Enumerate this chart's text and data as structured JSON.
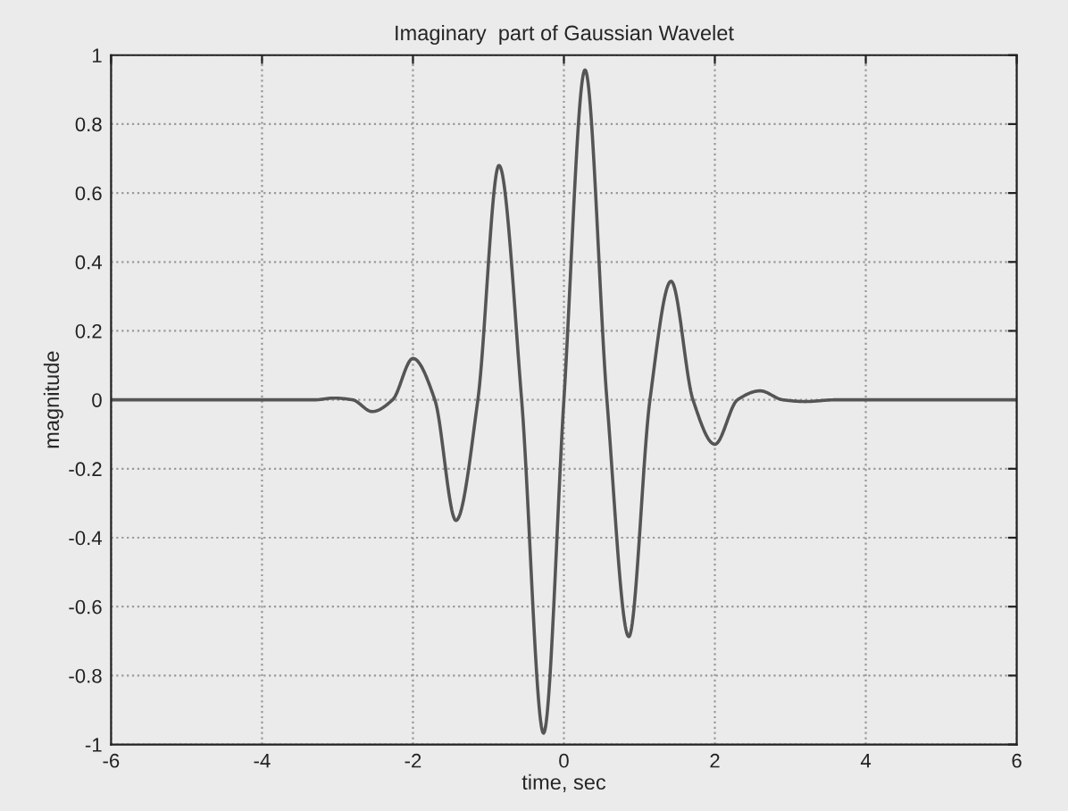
{
  "chart_data": {
    "type": "line",
    "title": "Imaginary  part of Gaussian Wavelet",
    "xlabel": "time, sec",
    "ylabel": "magnitude",
    "x": [
      -6,
      -4,
      -3.3,
      -3.05,
      -2.8,
      -2.54,
      -2.27,
      -2.0,
      -1.71,
      -1.43,
      -1.14,
      -0.86,
      -0.56,
      -0.27,
      0.0,
      0.28,
      0.57,
      0.86,
      1.14,
      1.42,
      1.71,
      2.0,
      2.3,
      2.6,
      2.9,
      3.2,
      3.6,
      6
    ],
    "series": [
      {
        "color": "#555555",
        "values": [
          0,
          0,
          0,
          0.005,
          0,
          -0.034,
          0,
          0.12,
          0,
          -0.35,
          0,
          0.68,
          0,
          -0.967,
          0,
          0.957,
          0,
          -0.687,
          0,
          0.344,
          0,
          -0.129,
          0,
          0.026,
          0,
          -0.005,
          0,
          0
        ]
      }
    ],
    "xlim": [
      -6,
      6
    ],
    "xticks": [
      -6,
      -4,
      -2,
      0,
      2,
      4,
      6
    ],
    "ylim": [
      -1,
      1
    ],
    "yticks": [
      {
        "value": -1,
        "label": "-1"
      },
      -0.8,
      -0.6,
      -0.4,
      -0.2,
      {
        "value": 0,
        "label": "0"
      },
      0.2,
      0.4,
      0.6,
      0.8,
      {
        "value": 1,
        "label": "1"
      }
    ],
    "grid": true,
    "line_style": "solid",
    "marker": "none"
  }
}
